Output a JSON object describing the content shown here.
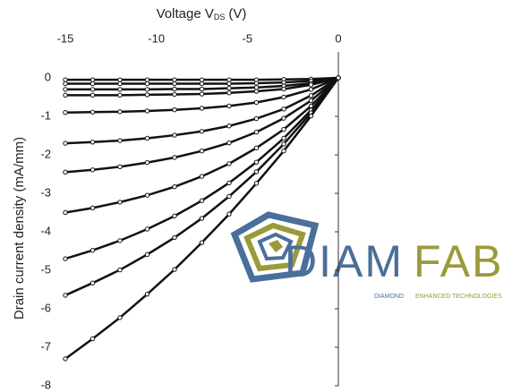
{
  "chart_data": {
    "type": "scatter-line",
    "xlabel": [
      "Voltage V",
      "DS",
      "(V)"
    ],
    "ylabel": "Drain current density (mA/mm)",
    "xlim": [
      -15,
      0
    ],
    "ylim": [
      -8,
      0
    ],
    "xticks": [
      -15,
      -10,
      -5,
      0
    ],
    "yticks": [
      0,
      -1,
      -2,
      -3,
      -4,
      -5,
      -6,
      -7,
      -8
    ],
    "x": [
      -15,
      -13.5,
      -12,
      -10.5,
      -9,
      -7.5,
      -6,
      -4.5,
      -3,
      -1.5,
      0
    ],
    "series": [
      {
        "color": "#111111",
        "values": [
          -0.05,
          -0.05,
          -0.05,
          -0.05,
          -0.05,
          -0.05,
          -0.05,
          -0.05,
          -0.04,
          -0.03,
          0
        ]
      },
      {
        "color": "#111111",
        "values": [
          -0.15,
          -0.15,
          -0.15,
          -0.15,
          -0.15,
          -0.15,
          -0.15,
          -0.14,
          -0.12,
          -0.08,
          0
        ]
      },
      {
        "color": "#111111",
        "values": [
          -0.3,
          -0.3,
          -0.3,
          -0.3,
          -0.29,
          -0.29,
          -0.27,
          -0.25,
          -0.21,
          -0.14,
          0
        ]
      },
      {
        "color": "#111111",
        "values": [
          -0.45,
          -0.45,
          -0.45,
          -0.44,
          -0.43,
          -0.42,
          -0.39,
          -0.35,
          -0.29,
          -0.18,
          0
        ]
      },
      {
        "color": "#111111",
        "values": [
          -0.9,
          -0.89,
          -0.88,
          -0.86,
          -0.83,
          -0.79,
          -0.73,
          -0.64,
          -0.5,
          -0.3,
          0
        ]
      },
      {
        "color": "#111111",
        "values": [
          -1.7,
          -1.67,
          -1.63,
          -1.57,
          -1.49,
          -1.39,
          -1.25,
          -1.06,
          -0.81,
          -0.46,
          0
        ]
      },
      {
        "color": "#111111",
        "values": [
          -2.45,
          -2.39,
          -2.31,
          -2.2,
          -2.07,
          -1.9,
          -1.69,
          -1.41,
          -1.05,
          -0.59,
          0
        ]
      },
      {
        "color": "#111111",
        "values": [
          -3.5,
          -3.38,
          -3.23,
          -3.05,
          -2.83,
          -2.56,
          -2.23,
          -1.82,
          -1.34,
          -0.73,
          0
        ]
      },
      {
        "color": "#111111",
        "values": [
          -4.7,
          -4.48,
          -4.23,
          -3.93,
          -3.59,
          -3.19,
          -2.73,
          -2.19,
          -1.57,
          -0.84,
          0
        ]
      },
      {
        "color": "#111111",
        "values": [
          -5.65,
          -5.33,
          -4.99,
          -4.59,
          -4.15,
          -3.65,
          -3.08,
          -2.44,
          -1.72,
          -0.91,
          0
        ]
      },
      {
        "color": "#111111",
        "values": [
          -7.3,
          -6.78,
          -6.23,
          -5.62,
          -4.98,
          -4.28,
          -3.54,
          -2.74,
          -1.9,
          -0.99,
          0
        ]
      }
    ]
  },
  "logo": {
    "left": "DIAM",
    "right": "FAB",
    "tagline_left": "DIAMOND",
    "tagline_right": "ENHANCED TECHNOLOGIES"
  }
}
